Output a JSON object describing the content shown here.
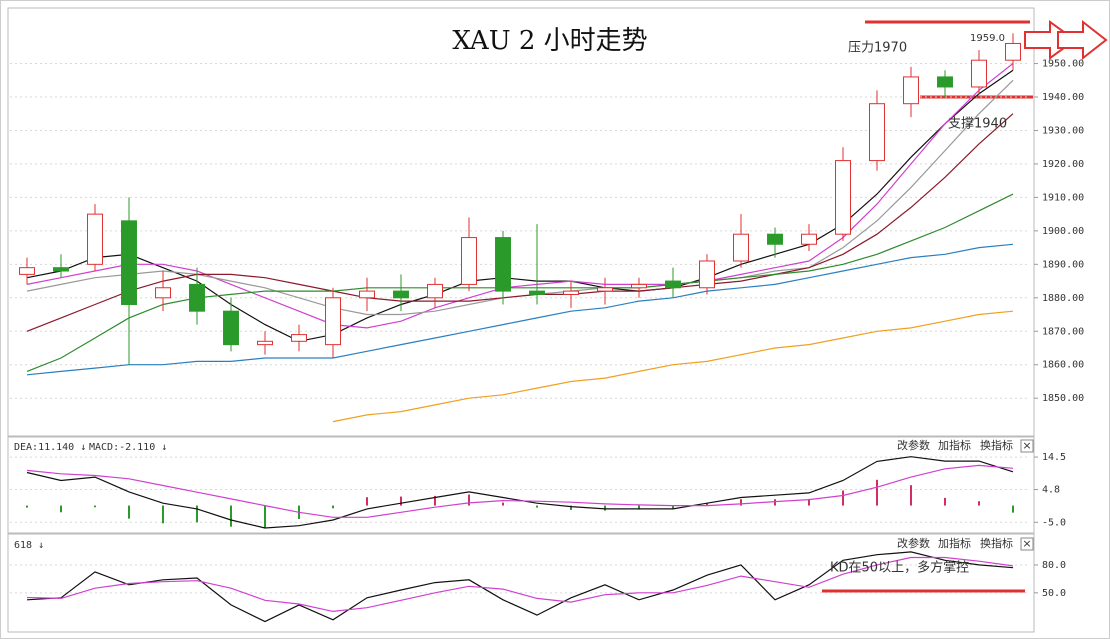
{
  "chart_data": [
    {
      "type": "candlestick",
      "title": "XAU 2 小时走势",
      "open": [
        1887,
        1889,
        1890,
        1903,
        1880,
        1884,
        1876,
        1866,
        1867,
        1866,
        1880,
        1882,
        1880,
        1884,
        1898,
        1882,
        1881,
        1882,
        1883,
        1885,
        1883,
        1891,
        1899,
        1896,
        1899,
        1921,
        1938,
        1946,
        1943,
        1951
      ],
      "high": [
        1892,
        1893,
        1908,
        1910,
        1888,
        1889,
        1880,
        1870,
        1872,
        1883,
        1886,
        1887,
        1886,
        1904,
        1900,
        1902,
        1885,
        1886,
        1886,
        1889,
        1893,
        1905,
        1901,
        1902,
        1925,
        1942,
        1949,
        1948,
        1954,
        1959
      ],
      "low": [
        1884,
        1886,
        1888,
        1860,
        1876,
        1872,
        1864,
        1863,
        1864,
        1862,
        1876,
        1876,
        1877,
        1882,
        1878,
        1878,
        1877,
        1878,
        1880,
        1880,
        1881,
        1889,
        1892,
        1894,
        1897,
        1918,
        1934,
        1940,
        1941,
        1948
      ],
      "close": [
        1889,
        1888,
        1905,
        1878,
        1883,
        1876,
        1866,
        1867,
        1869,
        1880,
        1882,
        1880,
        1884,
        1898,
        1882,
        1881,
        1882,
        1883,
        1884,
        1883,
        1891,
        1899,
        1896,
        1899,
        1921,
        1938,
        1946,
        1943,
        1951,
        1956
      ],
      "up_color": "#e03030",
      "down_color": "#2a9a2a",
      "lines": [
        {
          "color": "#111111",
          "values": [
            1886,
            1888,
            1892,
            1893,
            1889,
            1885,
            1878,
            1872,
            1867,
            1869,
            1874,
            1878,
            1881,
            1885,
            1886,
            1885,
            1885,
            1883,
            1882,
            1883,
            1886,
            1890,
            1893,
            1896,
            1902,
            1911,
            1922,
            1932,
            1941,
            1948
          ]
        },
        {
          "color": "#d040d0",
          "values": [
            1884,
            1886,
            1888,
            1890,
            1890,
            1888,
            1884,
            1880,
            1876,
            1872,
            1871,
            1873,
            1877,
            1880,
            1883,
            1884,
            1885,
            1884,
            1884,
            1884,
            1885,
            1887,
            1889,
            1891,
            1898,
            1908,
            1920,
            1932,
            1942,
            1950
          ]
        },
        {
          "color": "#999999",
          "values": [
            1882,
            1884,
            1886,
            1887,
            1888,
            1887,
            1885,
            1883,
            1880,
            1877,
            1875,
            1875,
            1876,
            1878,
            1880,
            1881,
            1882,
            1883,
            1883,
            1884,
            1885,
            1886,
            1888,
            1889,
            1895,
            1903,
            1913,
            1924,
            1935,
            1945
          ]
        },
        {
          "color": "#8b1a2a",
          "values": [
            1870,
            1874,
            1878,
            1882,
            1885,
            1887,
            1887,
            1886,
            1884,
            1882,
            1880,
            1879,
            1879,
            1879,
            1880,
            1881,
            1881,
            1882,
            1882,
            1883,
            1884,
            1885,
            1887,
            1889,
            1893,
            1899,
            1907,
            1916,
            1926,
            1935
          ]
        },
        {
          "color": "#2e8b2e",
          "values": [
            1858,
            1862,
            1868,
            1874,
            1878,
            1880,
            1881,
            1882,
            1882,
            1882,
            1883,
            1883,
            1883,
            1883,
            1883,
            1883,
            1883,
            1883,
            1883,
            1884,
            1885,
            1886,
            1887,
            1888,
            1890,
            1893,
            1897,
            1901,
            1906,
            1911
          ]
        },
        {
          "color": "#2a7fc0",
          "values": [
            1857,
            1858,
            1859,
            1860,
            1860,
            1861,
            1861,
            1862,
            1862,
            1862,
            1864,
            1866,
            1868,
            1870,
            1872,
            1874,
            1876,
            1877,
            1879,
            1880,
            1882,
            1883,
            1884,
            1886,
            1888,
            1890,
            1892,
            1893,
            1895,
            1896
          ]
        },
        {
          "color": "#f0a020",
          "values": [
            null,
            null,
            null,
            null,
            null,
            null,
            null,
            null,
            null,
            1843,
            1845,
            1846,
            1848,
            1850,
            1851,
            1853,
            1855,
            1856,
            1858,
            1860,
            1861,
            1863,
            1865,
            1866,
            1868,
            1870,
            1871,
            1873,
            1875,
            1876
          ]
        }
      ],
      "ylim": [
        1839,
        1966
      ],
      "yticks": [
        {
          "value": 1950,
          "label": "1950.00"
        },
        {
          "value": 1940,
          "label": "1940.00"
        },
        {
          "value": 1930,
          "label": "1930.00"
        },
        {
          "value": 1920,
          "label": "1920.00"
        },
        {
          "value": 1910,
          "label": "1910.00"
        },
        {
          "value": 1900,
          "label": "1900.00"
        },
        {
          "value": 1890,
          "label": "1890.00"
        },
        {
          "value": 1880,
          "label": "1880.00"
        },
        {
          "value": 1870,
          "label": "1870.00"
        },
        {
          "value": 1860,
          "label": "1860.00"
        },
        {
          "value": 1850,
          "label": "1850.00"
        }
      ],
      "grid": true,
      "annotations": [
        "1959.0",
        "压力1970",
        "支撑1940"
      ]
    },
    {
      "type": "macd",
      "labels": [
        "DEA:11.140 ↓",
        "MACD:-2.110 ↓"
      ],
      "buttons": [
        "改参数",
        "加指标",
        "换指标",
        "×"
      ],
      "hist_color": "#d03060",
      "hist_neg_color": "#2a9a2a",
      "histogram": [
        -0.6,
        -2,
        -0.5,
        -3.9,
        -5.3,
        -5,
        -6.3,
        -6.7,
        -4,
        -0.8,
        2.5,
        2.7,
        2.9,
        3.3,
        0.9,
        -0.6,
        -1.3,
        -1.5,
        -1.2,
        -1,
        0.7,
        1.9,
        1.9,
        2,
        4.5,
        7.7,
        6.1,
        2.3,
        1.3,
        -2.11
      ],
      "lines": [
        {
          "color": "#111111",
          "values": [
            9.9,
            7.5,
            8.5,
            4.1,
            0.7,
            -1,
            -4.3,
            -6.7,
            -6,
            -4.3,
            -1,
            0.7,
            2.4,
            4.1,
            2.4,
            0.7,
            -0.3,
            -1,
            -1,
            -1,
            0.7,
            2.4,
            3.1,
            3.8,
            7.5,
            13.2,
            14.6,
            13.3,
            13.3,
            10.1
          ]
        },
        {
          "color": "#d040d0",
          "values": [
            10.5,
            9.5,
            9,
            8,
            6,
            4,
            2,
            0,
            -2,
            -3.5,
            -3.5,
            -2,
            -0.5,
            0.8,
            1.5,
            1.3,
            1,
            0.5,
            0.2,
            0,
            0,
            0.5,
            1.2,
            1.8,
            3,
            5.5,
            8.5,
            11,
            12,
            11.14
          ]
        }
      ],
      "ylim": [
        -7.3,
        19.6
      ],
      "yticks": [
        14.5,
        4.8,
        {
          "value": -5,
          "label": "-5.0"
        }
      ],
      "grid": true
    },
    {
      "type": "kd",
      "labels": [
        "618 ↓"
      ],
      "buttons": [
        "改参数",
        "加指标",
        "换指标",
        "×"
      ],
      "lines": [
        {
          "color": "#111111",
          "values": [
            42.5,
            44.6,
            72.5,
            58.6,
            64,
            66,
            37,
            19,
            37,
            21,
            44.6,
            53,
            61,
            64,
            42.5,
            26,
            44.6,
            58.6,
            42.5,
            53,
            69,
            80,
            42.5,
            58.6,
            85,
            91,
            94,
            85,
            80,
            77
          ]
        },
        {
          "color": "#d040d0",
          "values": [
            45,
            44,
            55,
            60,
            62,
            63,
            55,
            42,
            38,
            30,
            34,
            42,
            50,
            57,
            54,
            44,
            40,
            48,
            50,
            50,
            58,
            68,
            62,
            56,
            70,
            80,
            88,
            88,
            84,
            79
          ]
        }
      ],
      "ylim": [
        10,
        109
      ],
      "yticks": [
        {
          "value": 80,
          "label": "80.0"
        },
        {
          "value": 50,
          "label": "50.0"
        }
      ],
      "grid": true,
      "annotations": [
        "KD在50以上，多方掌控"
      ]
    }
  ]
}
